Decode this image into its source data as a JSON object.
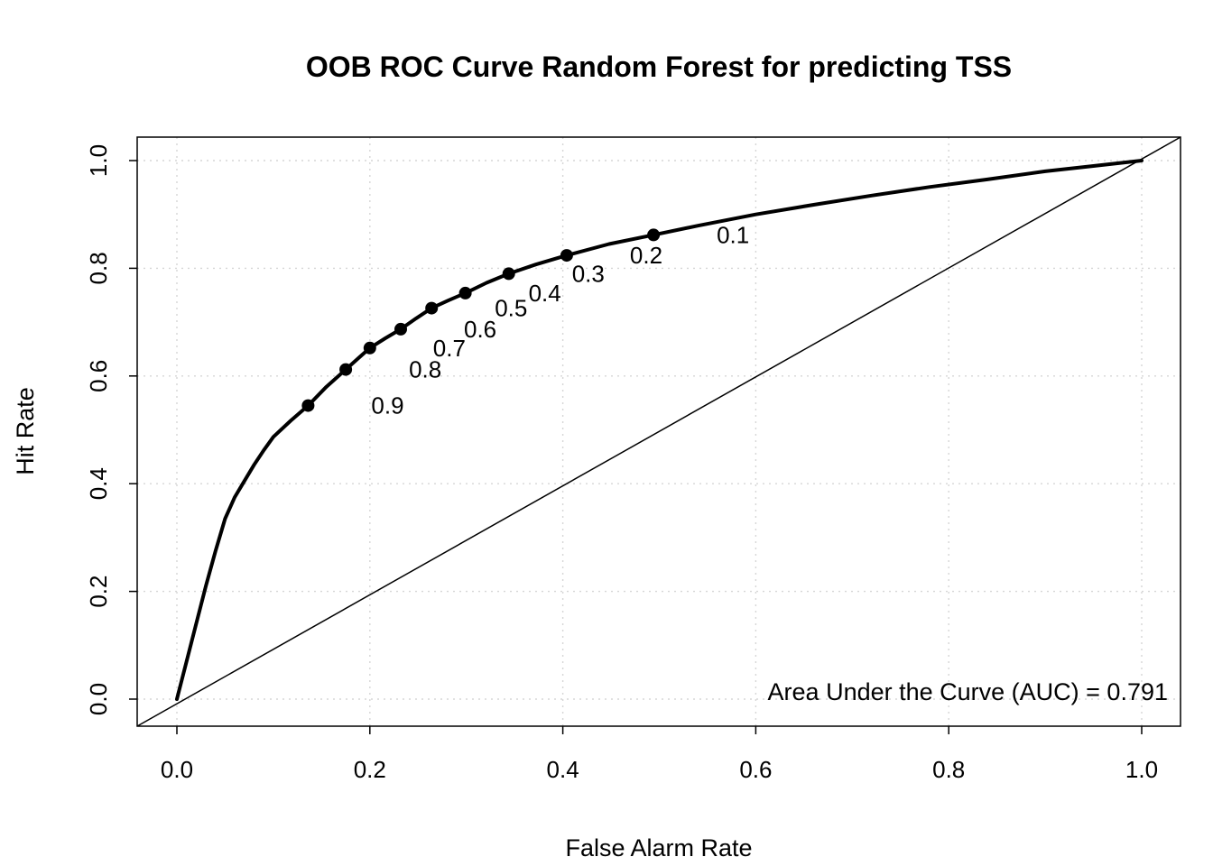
{
  "chart_data": {
    "type": "line",
    "title": "OOB ROC Curve Random Forest for predicting TSS",
    "annotation": "Area Under the Curve (AUC) = 0.791",
    "auc": 0.791,
    "grid": true,
    "axes": {
      "x": {
        "label": "False Alarm Rate",
        "range": [
          0,
          1
        ],
        "tick_values": [
          0,
          0.2,
          0.4,
          0.6,
          0.8,
          1
        ],
        "tick_labels": [
          "0.0",
          "0.2",
          "0.4",
          "0.6",
          "0.8",
          "1.0"
        ]
      },
      "y": {
        "label": "Hit Rate",
        "range": [
          0,
          1
        ],
        "tick_values": [
          0,
          0.2,
          0.4,
          0.6,
          0.8,
          1
        ],
        "tick_labels": [
          "0.0",
          "0.2",
          "0.4",
          "0.6",
          "0.8",
          "1.0"
        ]
      }
    },
    "series": [
      {
        "name": "ROC curve",
        "type": "line",
        "color": "#000000",
        "width": 4,
        "points": [
          [
            0.0,
            0.0
          ],
          [
            0.01,
            0.07
          ],
          [
            0.02,
            0.14
          ],
          [
            0.03,
            0.21
          ],
          [
            0.04,
            0.275
          ],
          [
            0.05,
            0.335
          ],
          [
            0.06,
            0.375
          ],
          [
            0.07,
            0.405
          ],
          [
            0.08,
            0.435
          ],
          [
            0.09,
            0.462
          ],
          [
            0.1,
            0.487
          ],
          [
            0.118,
            0.517
          ],
          [
            0.136,
            0.545
          ],
          [
            0.155,
            0.58
          ],
          [
            0.175,
            0.612
          ],
          [
            0.188,
            0.633
          ],
          [
            0.2,
            0.652
          ],
          [
            0.216,
            0.67
          ],
          [
            0.232,
            0.687
          ],
          [
            0.248,
            0.707
          ],
          [
            0.264,
            0.726
          ],
          [
            0.281,
            0.74
          ],
          [
            0.299,
            0.754
          ],
          [
            0.321,
            0.773
          ],
          [
            0.344,
            0.79
          ],
          [
            0.372,
            0.807
          ],
          [
            0.404,
            0.824
          ],
          [
            0.448,
            0.845
          ],
          [
            0.494,
            0.862
          ],
          [
            0.54,
            0.879
          ],
          [
            0.6,
            0.9
          ],
          [
            0.66,
            0.918
          ],
          [
            0.72,
            0.935
          ],
          [
            0.78,
            0.951
          ],
          [
            0.84,
            0.965
          ],
          [
            0.9,
            0.98
          ],
          [
            0.95,
            0.99
          ],
          [
            1.0,
            1.0
          ]
        ]
      },
      {
        "name": "chance diagonal",
        "type": "line",
        "color": "#000000",
        "width": 1.5,
        "points": [
          [
            0,
            0
          ],
          [
            1,
            1
          ]
        ]
      }
    ],
    "threshold_markers": [
      {
        "label": "0.1",
        "x": 0.494,
        "y": 0.862
      },
      {
        "label": "0.2",
        "x": 0.404,
        "y": 0.824
      },
      {
        "label": "0.3",
        "x": 0.344,
        "y": 0.79
      },
      {
        "label": "0.4",
        "x": 0.299,
        "y": 0.754
      },
      {
        "label": "0.5",
        "x": 0.264,
        "y": 0.726
      },
      {
        "label": "0.6",
        "x": 0.232,
        "y": 0.687
      },
      {
        "label": "0.7",
        "x": 0.2,
        "y": 0.652
      },
      {
        "label": "0.8",
        "x": 0.175,
        "y": 0.612
      },
      {
        "label": "0.9",
        "x": 0.136,
        "y": 0.545
      }
    ],
    "colors": {
      "curve": "#000000",
      "diagonal": "#000000",
      "grid": "#d6d6d6",
      "text": "#000000",
      "background": "#ffffff"
    }
  }
}
